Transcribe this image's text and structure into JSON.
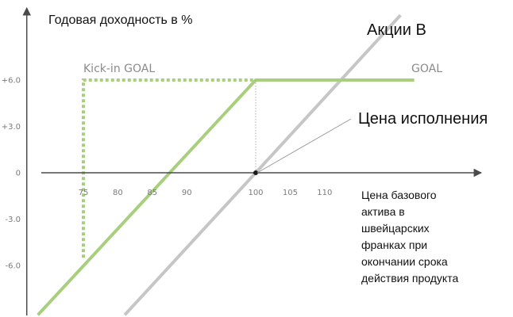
{
  "chart_data": {
    "type": "line",
    "title": "",
    "ylabel": "Годовая доходность в %",
    "xlabel_lines": [
      "Цена базового",
      "актива в",
      "швейцарских",
      "франках при",
      "окончании срока",
      "действия продукта"
    ],
    "x_ticks": [
      {
        "value": 75,
        "label": "75"
      },
      {
        "value": 80,
        "label": "80"
      },
      {
        "value": 85,
        "label": "85"
      },
      {
        "value": 90,
        "label": "90"
      },
      {
        "value": 100,
        "label": "100"
      },
      {
        "value": 105,
        "label": "105"
      },
      {
        "value": 110,
        "label": "110"
      }
    ],
    "y_ticks": [
      {
        "value": 6,
        "label": "+6.0"
      },
      {
        "value": 3,
        "label": "+3.0"
      },
      {
        "value": 0,
        "label": "0"
      },
      {
        "value": -3,
        "label": "-3.0"
      },
      {
        "value": -6,
        "label": "-6.0"
      }
    ],
    "xlim": [
      68.4,
      123
    ],
    "ylim": [
      -9.2,
      10.5
    ],
    "grid": false,
    "series": [
      {
        "name": "Kick-in GOAL",
        "style": "dotted",
        "color": "#a8cf7e",
        "points": [
          [
            75,
            -5.5
          ],
          [
            75,
            6
          ],
          [
            100,
            6
          ]
        ]
      },
      {
        "name": "GOAL",
        "style": "solid",
        "color": "#a8cf7e",
        "points": [
          [
            68.4,
            -9.2
          ],
          [
            100,
            6
          ],
          [
            123,
            6
          ]
        ]
      },
      {
        "name": "Акции B",
        "style": "solid",
        "color": "#c6c6c6",
        "points": [
          [
            81,
            -9.2
          ],
          [
            100,
            0
          ],
          [
            121,
            10.2
          ]
        ]
      }
    ],
    "strike": {
      "value": 100,
      "label": "Цена исполнения"
    },
    "colors": {
      "axis": "#4a4a4a",
      "goal_green": "#a8cf7e",
      "stock_gray": "#c6c6c6",
      "text": "#111111"
    }
  }
}
